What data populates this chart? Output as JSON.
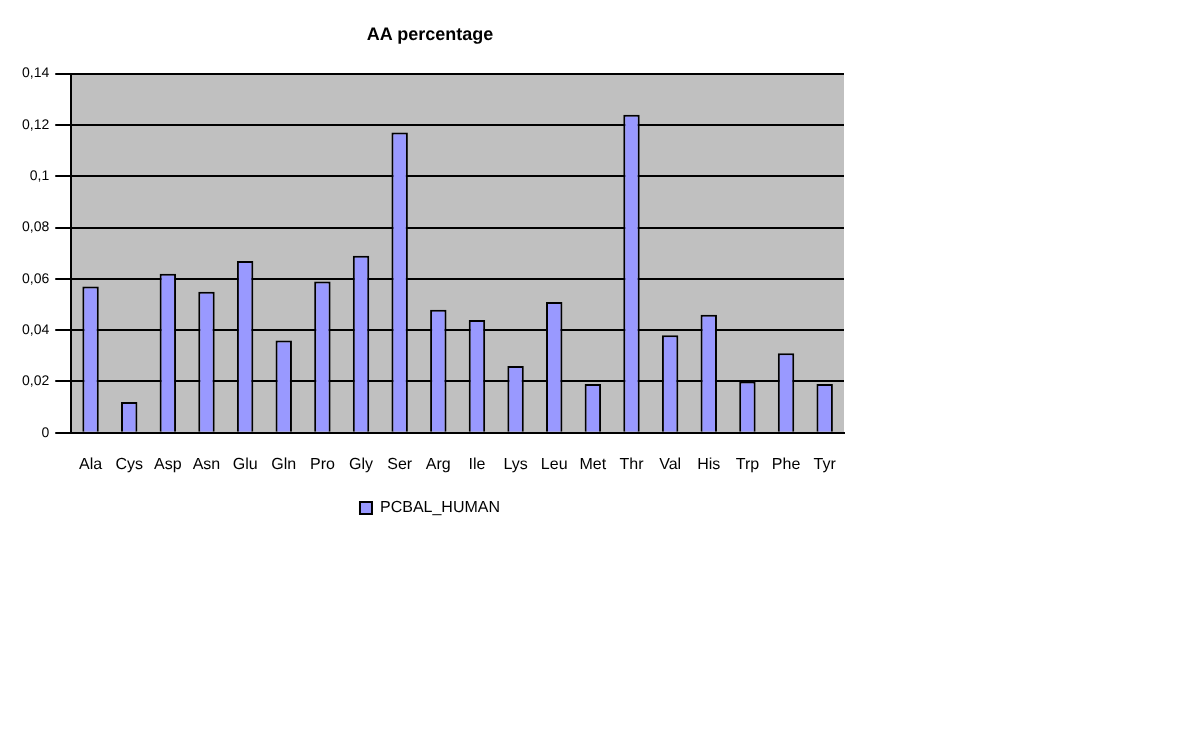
{
  "chart_data": {
    "type": "bar",
    "title": "AA percentage",
    "categories": [
      "Ala",
      "Cys",
      "Asp",
      "Asn",
      "Glu",
      "Gln",
      "Pro",
      "Gly",
      "Ser",
      "Arg",
      "Ile",
      "Lys",
      "Leu",
      "Met",
      "Thr",
      "Val",
      "His",
      "Trp",
      "Phe",
      "Tyr"
    ],
    "series": [
      {
        "name": "PCBAL_HUMAN",
        "color": "#9999ff",
        "values": [
          0.057,
          0.012,
          0.062,
          0.055,
          0.067,
          0.036,
          0.059,
          0.069,
          0.117,
          0.048,
          0.044,
          0.026,
          0.051,
          0.019,
          0.124,
          0.038,
          0.046,
          0.02,
          0.031,
          0.019
        ]
      }
    ],
    "ylim": [
      0,
      0.14
    ],
    "yticks": [
      0,
      {
        "value": 0.02,
        "label": "0,02"
      },
      {
        "value": 0.04,
        "label": "0,04"
      },
      {
        "value": 0.06,
        "label": "0,06"
      },
      {
        "value": 0.08,
        "label": "0,08"
      },
      {
        "value": 0.1,
        "label": "0,1"
      },
      {
        "value": 0.12,
        "label": "0,12"
      },
      {
        "value": 0.14,
        "label": "0,14"
      }
    ],
    "grid": "y",
    "legend": "bottom"
  }
}
